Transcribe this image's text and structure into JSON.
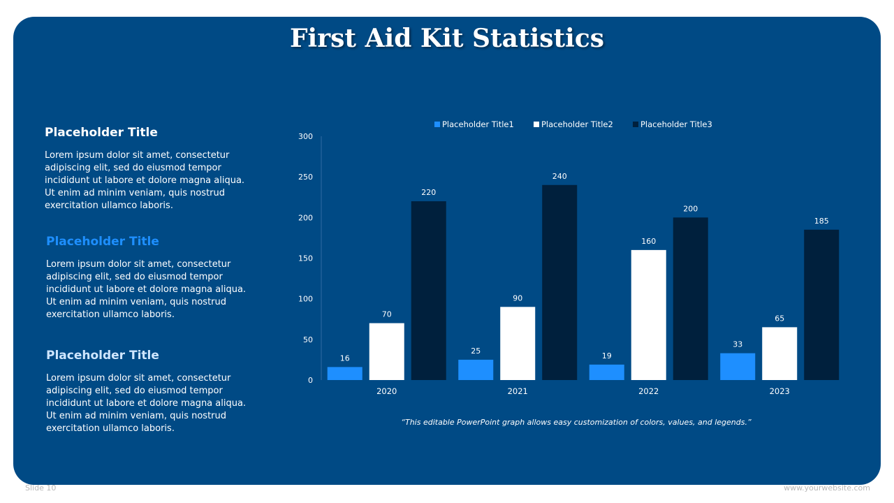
{
  "slide": {
    "title": "First Aid Kit Statistics",
    "slide_number": "Slide 10",
    "website": "www.yourwebsite.com",
    "caption": "“This editable PowerPoint graph allows easy customization of colors, values, and legends.”"
  },
  "text_blocks": [
    {
      "title": "Placeholder Title",
      "title_color": "#ffffff",
      "body": "Lorem ipsum dolor sit amet, consectetur adipiscing elit, sed do eiusmod tempor incididunt ut labore et dolore magna aliqua. Ut enim ad minim veniam, quis nostrud exercitation ullamco laboris."
    },
    {
      "title": "Placeholder Title",
      "title_color": "#1e8fff",
      "body": "Lorem ipsum dolor sit amet, consectetur adipiscing elit, sed do eiusmod tempor incididunt ut labore et dolore magna aliqua. Ut enim ad minim veniam, quis nostrud exercitation ullamco laboris."
    },
    {
      "title": "Placeholder Title",
      "title_color": "#cfe6ff",
      "body": "Lorem ipsum dolor sit amet, consectetur adipiscing elit, sed do eiusmod tempor incididunt ut labore et dolore magna aliqua. Ut enim ad minim veniam, quis nostrud exercitation ullamco laboris."
    }
  ],
  "colors": {
    "panel": "#004a85",
    "text": "#ffffff"
  },
  "chart_data": {
    "type": "bar",
    "categories": [
      "2020",
      "2021",
      "2022",
      "2023"
    ],
    "series": [
      {
        "name": "Placeholder Title1",
        "color": "#1e8fff",
        "values": [
          16,
          25,
          19,
          33
        ]
      },
      {
        "name": "Placeholder Title2",
        "color": "#ffffff",
        "values": [
          70,
          90,
          160,
          65
        ]
      },
      {
        "name": "Placeholder Title3",
        "color": "#00203d",
        "values": [
          220,
          240,
          200,
          185
        ]
      }
    ],
    "ylim": [
      0,
      300
    ],
    "yticks": [
      0,
      50,
      100,
      150,
      200,
      250,
      300
    ],
    "legend_position": "top",
    "data_labels": true,
    "grid": false
  }
}
